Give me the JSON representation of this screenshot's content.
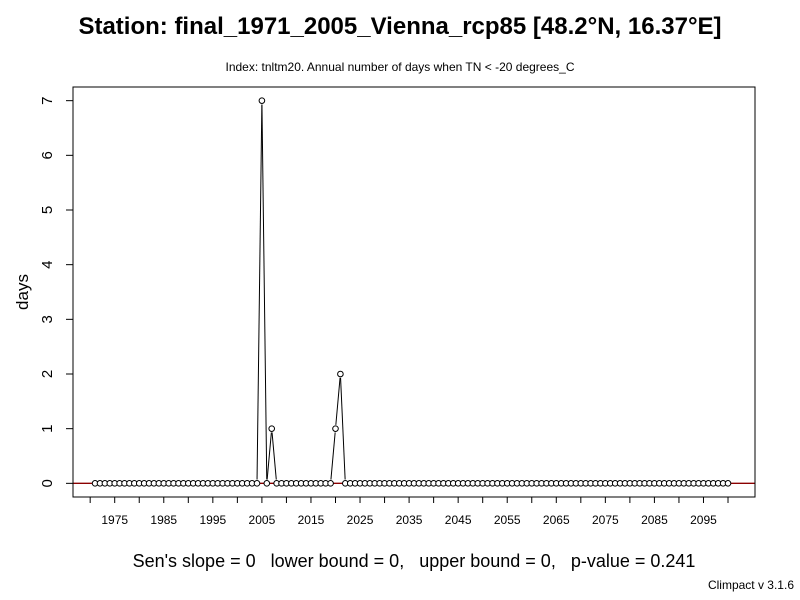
{
  "title": "Station: final_1971_2005_Vienna_rcp85 [48.2°N, 16.37°E]",
  "subtitle": "Index: tnltm20. Annual number of days when TN < -20 degrees_C",
  "stats": "Sen's slope = 0   lower bound = 0,   upper bound = 0,   p-value = 0.241",
  "credit": "Climpact v 3.1.6",
  "chart_data": {
    "type": "line",
    "ylabel": "days",
    "xlim": [
      1966.5,
      2105.5
    ],
    "ylim": [
      -0.25,
      7.25
    ],
    "x_ticks": [
      1975,
      1985,
      1995,
      2005,
      2015,
      2025,
      2035,
      2045,
      2055,
      2065,
      2075,
      2085,
      2095
    ],
    "y_ticks": [
      0,
      1,
      2,
      3,
      4,
      5,
      6,
      7
    ],
    "reference_line": {
      "y": 0,
      "color": "#8b0000"
    },
    "series": [
      {
        "x_start": 1971,
        "x_end": 2100,
        "values": [
          0,
          0,
          0,
          0,
          0,
          0,
          0,
          0,
          0,
          0,
          0,
          0,
          0,
          0,
          0,
          0,
          0,
          0,
          0,
          0,
          0,
          0,
          0,
          0,
          0,
          0,
          0,
          0,
          0,
          0,
          0,
          0,
          0,
          0,
          7,
          0,
          1,
          0,
          0,
          0,
          0,
          0,
          0,
          0,
          0,
          0,
          0,
          0,
          0,
          1,
          2,
          0,
          0,
          0,
          0,
          0,
          0,
          0,
          0,
          0,
          0,
          0,
          0,
          0,
          0,
          0,
          0,
          0,
          0,
          0,
          0,
          0,
          0,
          0,
          0,
          0,
          0,
          0,
          0,
          0,
          0,
          0,
          0,
          0,
          0,
          0,
          0,
          0,
          0,
          0,
          0,
          0,
          0,
          0,
          0,
          0,
          0,
          0,
          0,
          0,
          0,
          0,
          0,
          0,
          0,
          0,
          0,
          0,
          0,
          0,
          0,
          0,
          0,
          0,
          0,
          0,
          0,
          0,
          0,
          0,
          0,
          0,
          0,
          0,
          0,
          0,
          0,
          0,
          0,
          0
        ]
      }
    ]
  }
}
